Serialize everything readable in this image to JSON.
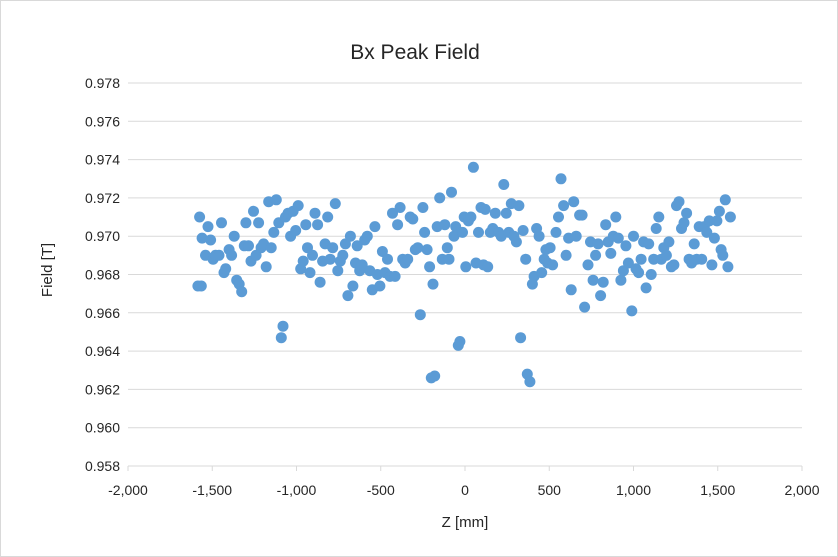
{
  "chart_data": {
    "type": "scatter",
    "title": "Bx Peak Field",
    "xlabel": "Z [mm]",
    "ylabel": "Field [T]",
    "xlim": [
      -2000,
      2000
    ],
    "ylim": [
      0.958,
      0.978
    ],
    "x_ticks": [
      -2000,
      -1500,
      -1000,
      -500,
      0,
      500,
      1000,
      1500,
      2000
    ],
    "x_tick_labels": [
      "-2,000",
      "-1,500",
      "-1,000",
      "-500",
      "0",
      "500",
      "1,000",
      "1,500",
      "2,000"
    ],
    "y_ticks": [
      0.958,
      0.96,
      0.962,
      0.964,
      0.966,
      0.968,
      0.97,
      0.972,
      0.974,
      0.976,
      0.978
    ],
    "y_tick_labels": [
      "0.958",
      "0.960",
      "0.962",
      "0.964",
      "0.966",
      "0.968",
      "0.970",
      "0.972",
      "0.974",
      "0.976",
      "0.978"
    ],
    "grid": "horizontal",
    "legend": "none",
    "marker_color": "#5b9bd5",
    "points": [
      [
        -1585,
        0.9674
      ],
      [
        -1565,
        0.9674
      ],
      [
        -1575,
        0.971
      ],
      [
        -1560,
        0.9699
      ],
      [
        -1540,
        0.969
      ],
      [
        -1525,
        0.9705
      ],
      [
        -1510,
        0.9698
      ],
      [
        -1495,
        0.9688
      ],
      [
        -1480,
        0.969
      ],
      [
        -1460,
        0.969
      ],
      [
        -1445,
        0.9707
      ],
      [
        -1430,
        0.9681
      ],
      [
        -1420,
        0.9683
      ],
      [
        -1400,
        0.9693
      ],
      [
        -1385,
        0.969
      ],
      [
        -1370,
        0.97
      ],
      [
        -1355,
        0.9677
      ],
      [
        -1340,
        0.9675
      ],
      [
        -1325,
        0.9671
      ],
      [
        -1310,
        0.9695
      ],
      [
        -1300,
        0.9707
      ],
      [
        -1285,
        0.9695
      ],
      [
        -1270,
        0.9687
      ],
      [
        -1255,
        0.9713
      ],
      [
        -1240,
        0.969
      ],
      [
        -1225,
        0.9707
      ],
      [
        -1210,
        0.9694
      ],
      [
        -1195,
        0.9696
      ],
      [
        -1180,
        0.9684
      ],
      [
        -1165,
        0.9718
      ],
      [
        -1150,
        0.9694
      ],
      [
        -1135,
        0.9702
      ],
      [
        -1120,
        0.9719
      ],
      [
        -1105,
        0.9707
      ],
      [
        -1090,
        0.9647
      ],
      [
        -1080,
        0.9653
      ],
      [
        -1065,
        0.971
      ],
      [
        -1050,
        0.9712
      ],
      [
        -1035,
        0.97
      ],
      [
        -1020,
        0.9713
      ],
      [
        -1005,
        0.9703
      ],
      [
        -990,
        0.9716
      ],
      [
        -975,
        0.9683
      ],
      [
        -960,
        0.9687
      ],
      [
        -945,
        0.9706
      ],
      [
        -935,
        0.9694
      ],
      [
        -920,
        0.9681
      ],
      [
        -905,
        0.969
      ],
      [
        -890,
        0.9712
      ],
      [
        -875,
        0.9706
      ],
      [
        -860,
        0.9676
      ],
      [
        -845,
        0.9687
      ],
      [
        -830,
        0.9696
      ],
      [
        -815,
        0.971
      ],
      [
        -800,
        0.9688
      ],
      [
        -785,
        0.9694
      ],
      [
        -770,
        0.9717
      ],
      [
        -755,
        0.9682
      ],
      [
        -740,
        0.9687
      ],
      [
        -725,
        0.969
      ],
      [
        -710,
        0.9696
      ],
      [
        -695,
        0.9669
      ],
      [
        -680,
        0.97
      ],
      [
        -665,
        0.9674
      ],
      [
        -650,
        0.9686
      ],
      [
        -640,
        0.9695
      ],
      [
        -625,
        0.9682
      ],
      [
        -610,
        0.9685
      ],
      [
        -595,
        0.9698
      ],
      [
        -580,
        0.97
      ],
      [
        -565,
        0.9682
      ],
      [
        -550,
        0.9672
      ],
      [
        -535,
        0.9705
      ],
      [
        -520,
        0.968
      ],
      [
        -505,
        0.9674
      ],
      [
        -490,
        0.9692
      ],
      [
        -475,
        0.9681
      ],
      [
        -460,
        0.9688
      ],
      [
        -445,
        0.9679
      ],
      [
        -430,
        0.9712
      ],
      [
        -415,
        0.9679
      ],
      [
        -400,
        0.9706
      ],
      [
        -385,
        0.9715
      ],
      [
        -370,
        0.9688
      ],
      [
        -355,
        0.9686
      ],
      [
        -340,
        0.9688
      ],
      [
        -325,
        0.971
      ],
      [
        -310,
        0.9709
      ],
      [
        -295,
        0.9693
      ],
      [
        -280,
        0.9694
      ],
      [
        -265,
        0.9659
      ],
      [
        -250,
        0.9715
      ],
      [
        -240,
        0.9702
      ],
      [
        -225,
        0.9693
      ],
      [
        -210,
        0.9684
      ],
      [
        -200,
        0.9626
      ],
      [
        -190,
        0.9675
      ],
      [
        -180,
        0.9627
      ],
      [
        -165,
        0.9705
      ],
      [
        -150,
        0.972
      ],
      [
        -135,
        0.9688
      ],
      [
        -120,
        0.9706
      ],
      [
        -105,
        0.9694
      ],
      [
        -95,
        0.9688
      ],
      [
        -80,
        0.9723
      ],
      [
        -65,
        0.97
      ],
      [
        -55,
        0.9705
      ],
      [
        -40,
        0.9643
      ],
      [
        -30,
        0.9645
      ],
      [
        -15,
        0.9702
      ],
      [
        -5,
        0.971
      ],
      [
        5,
        0.9684
      ],
      [
        20,
        0.9708
      ],
      [
        35,
        0.971
      ],
      [
        50,
        0.9736
      ],
      [
        65,
        0.9686
      ],
      [
        80,
        0.9702
      ],
      [
        95,
        0.9715
      ],
      [
        110,
        0.9685
      ],
      [
        120,
        0.9714
      ],
      [
        135,
        0.9684
      ],
      [
        150,
        0.9702
      ],
      [
        165,
        0.9704
      ],
      [
        180,
        0.9712
      ],
      [
        200,
        0.9702
      ],
      [
        215,
        0.97
      ],
      [
        230,
        0.9727
      ],
      [
        245,
        0.9712
      ],
      [
        260,
        0.9702
      ],
      [
        275,
        0.9717
      ],
      [
        290,
        0.97
      ],
      [
        305,
        0.9697
      ],
      [
        320,
        0.9716
      ],
      [
        330,
        0.9647
      ],
      [
        345,
        0.9703
      ],
      [
        360,
        0.9688
      ],
      [
        370,
        0.9628
      ],
      [
        385,
        0.9624
      ],
      [
        400,
        0.9675
      ],
      [
        410,
        0.9679
      ],
      [
        425,
        0.9704
      ],
      [
        440,
        0.97
      ],
      [
        455,
        0.9681
      ],
      [
        470,
        0.9688
      ],
      [
        480,
        0.9693
      ],
      [
        490,
        0.9686
      ],
      [
        505,
        0.9694
      ],
      [
        520,
        0.9685
      ],
      [
        540,
        0.9702
      ],
      [
        555,
        0.971
      ],
      [
        570,
        0.973
      ],
      [
        585,
        0.9716
      ],
      [
        600,
        0.969
      ],
      [
        615,
        0.9699
      ],
      [
        630,
        0.9672
      ],
      [
        645,
        0.9718
      ],
      [
        660,
        0.97
      ],
      [
        680,
        0.9711
      ],
      [
        695,
        0.9711
      ],
      [
        710,
        0.9663
      ],
      [
        730,
        0.9685
      ],
      [
        745,
        0.9697
      ],
      [
        760,
        0.9677
      ],
      [
        775,
        0.969
      ],
      [
        790,
        0.9696
      ],
      [
        805,
        0.9669
      ],
      [
        820,
        0.9676
      ],
      [
        835,
        0.9706
      ],
      [
        850,
        0.9697
      ],
      [
        865,
        0.9691
      ],
      [
        880,
        0.97
      ],
      [
        895,
        0.971
      ],
      [
        910,
        0.9699
      ],
      [
        925,
        0.9677
      ],
      [
        940,
        0.9682
      ],
      [
        955,
        0.9695
      ],
      [
        970,
        0.9686
      ],
      [
        990,
        0.9661
      ],
      [
        1000,
        0.97
      ],
      [
        1015,
        0.9683
      ],
      [
        1030,
        0.9681
      ],
      [
        1045,
        0.9688
      ],
      [
        1060,
        0.9697
      ],
      [
        1075,
        0.9673
      ],
      [
        1090,
        0.9696
      ],
      [
        1105,
        0.968
      ],
      [
        1120,
        0.9688
      ],
      [
        1135,
        0.9704
      ],
      [
        1150,
        0.971
      ],
      [
        1165,
        0.9688
      ],
      [
        1180,
        0.9694
      ],
      [
        1195,
        0.969
      ],
      [
        1210,
        0.9697
      ],
      [
        1225,
        0.9684
      ],
      [
        1240,
        0.9685
      ],
      [
        1255,
        0.9716
      ],
      [
        1270,
        0.9718
      ],
      [
        1285,
        0.9704
      ],
      [
        1300,
        0.9707
      ],
      [
        1315,
        0.9712
      ],
      [
        1330,
        0.9688
      ],
      [
        1345,
        0.9686
      ],
      [
        1360,
        0.9696
      ],
      [
        1375,
        0.9688
      ],
      [
        1390,
        0.9705
      ],
      [
        1405,
        0.9688
      ],
      [
        1420,
        0.9705
      ],
      [
        1435,
        0.9702
      ],
      [
        1450,
        0.9708
      ],
      [
        1465,
        0.9685
      ],
      [
        1480,
        0.9699
      ],
      [
        1495,
        0.9708
      ],
      [
        1510,
        0.9713
      ],
      [
        1520,
        0.9693
      ],
      [
        1530,
        0.969
      ],
      [
        1545,
        0.9719
      ],
      [
        1560,
        0.9684
      ],
      [
        1575,
        0.971
      ]
    ]
  }
}
